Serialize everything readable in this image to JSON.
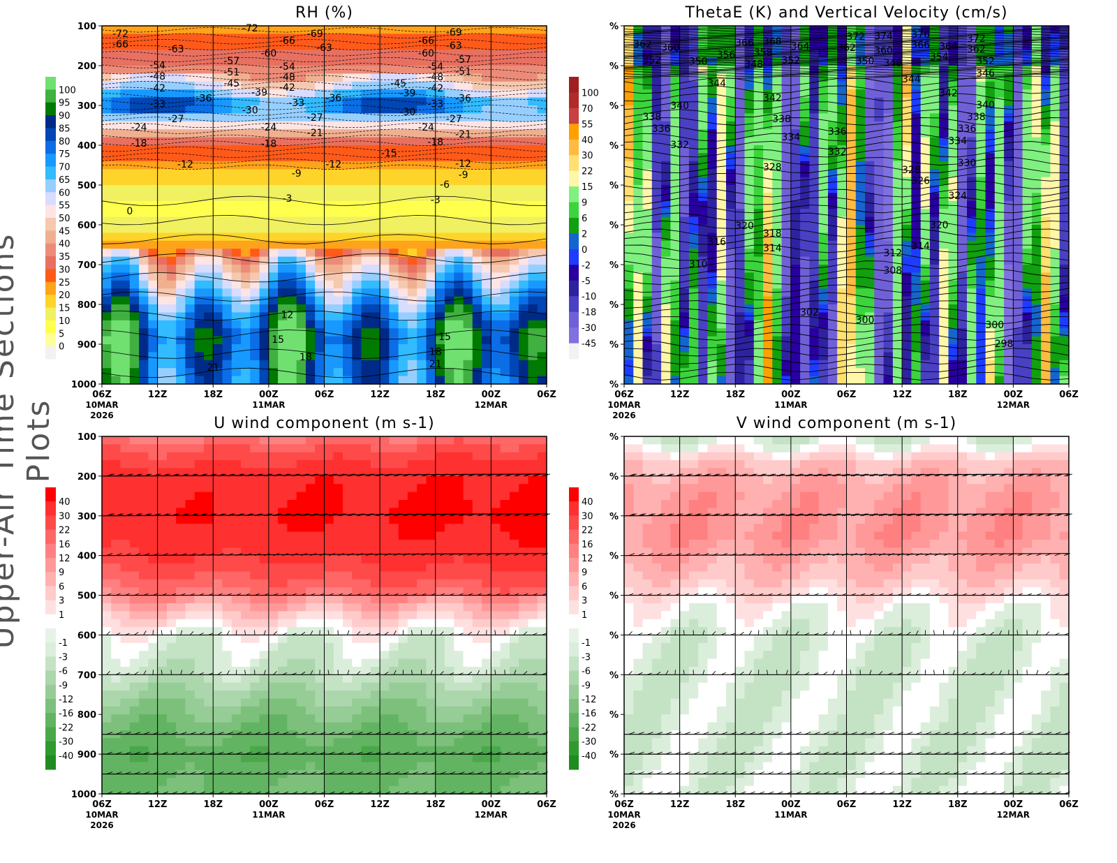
{
  "figure_title": "Upper-Air Time Sections Plots",
  "chart_data": [
    {
      "id": "rh",
      "type": "heatmap",
      "title": "RH (%)",
      "x_ticks": [
        {
          "label": "06Z",
          "sub": "10MAR",
          "sub2": "2026"
        },
        {
          "label": "12Z"
        },
        {
          "label": "18Z"
        },
        {
          "label": "00Z",
          "sub": "11MAR"
        },
        {
          "label": "06Z"
        },
        {
          "label": "12Z"
        },
        {
          "label": "18Z"
        },
        {
          "label": "00Z",
          "sub": "12MAR"
        },
        {
          "label": "06Z"
        }
      ],
      "x_range": [
        "2026-03-10T06",
        "2026-03-12T06"
      ],
      "y_ticks": [
        "100",
        "200",
        "300",
        "400",
        "500",
        "600",
        "700",
        "800",
        "900",
        "1000"
      ],
      "y_range": [
        100,
        1000
      ],
      "y_inverted": true,
      "colorbar_levels": [
        "0",
        "5",
        "10",
        "15",
        "20",
        "25",
        "30",
        "35",
        "40",
        "45",
        "50",
        "55",
        "60",
        "65",
        "70",
        "75",
        "80",
        "85",
        "90",
        "95",
        "100"
      ],
      "colorbar_colors": [
        "#f2f2f2",
        "#ffff99",
        "#ffff4d",
        "#f0f060",
        "#ffd42a",
        "#ffa31a",
        "#ff5a1a",
        "#e87060",
        "#ec8c78",
        "#f0b090",
        "#f5c8b0",
        "#ffe4e4",
        "#d8dcff",
        "#96cfff",
        "#33bbff",
        "#1799ff",
        "#0c6ee6",
        "#0046b4",
        "#002a88",
        "#007a00",
        "#40b040",
        "#70e070"
      ],
      "contour_labels": [
        [
          "2026-03-10T08",
          119,
          "-72"
        ],
        [
          "2026-03-10T08",
          146,
          "-66"
        ],
        [
          "2026-03-10T22",
          105,
          "-72"
        ],
        [
          "2026-03-11T02",
          137,
          "-66"
        ],
        [
          "2026-03-11T05",
          119,
          "-69"
        ],
        [
          "2026-03-10T14",
          158,
          "-63"
        ],
        [
          "2026-03-11T06",
          154,
          "-63"
        ],
        [
          "2026-03-11T00",
          168,
          "-60"
        ],
        [
          "2026-03-11T17",
          137,
          "-66"
        ],
        [
          "2026-03-11T20",
          116,
          "-69"
        ],
        [
          "2026-03-11T20",
          149,
          "-63"
        ],
        [
          "2026-03-11T17",
          168,
          "-60"
        ],
        [
          "2026-03-11T21",
          184,
          "-57"
        ],
        [
          "2026-03-10T12",
          198,
          "-54"
        ],
        [
          "2026-03-10T20",
          188,
          "-57"
        ],
        [
          "2026-03-11T02",
          202,
          "-54"
        ],
        [
          "2026-03-10T20",
          216,
          "-51"
        ],
        [
          "2026-03-10T12",
          226,
          "-48"
        ],
        [
          "2026-03-10T20",
          244,
          "-45"
        ],
        [
          "2026-03-11T02",
          228,
          "-48"
        ],
        [
          "2026-03-10T12",
          256,
          "-42"
        ],
        [
          "2026-03-11T02",
          254,
          "-42"
        ],
        [
          "2026-03-11T21",
          214,
          "-51"
        ],
        [
          "2026-03-11T18",
          202,
          "-54"
        ],
        [
          "2026-03-11T18",
          228,
          "-48"
        ],
        [
          "2026-03-11T14",
          244,
          "-45"
        ],
        [
          "2026-03-11T18",
          256,
          "-42"
        ],
        [
          "2026-03-10T23",
          267,
          "-39"
        ],
        [
          "2026-03-11T15",
          268,
          "-39"
        ],
        [
          "2026-03-10T17",
          282,
          "-36"
        ],
        [
          "2026-03-11T07",
          281,
          "-36"
        ],
        [
          "2026-03-11T21",
          282,
          "-36"
        ],
        [
          "2026-03-10T12",
          296,
          "-33"
        ],
        [
          "2026-03-11T03",
          293,
          "-33"
        ],
        [
          "2026-03-11T18",
          296,
          "-33"
        ],
        [
          "2026-03-10T22",
          311,
          "-30"
        ],
        [
          "2026-03-11T15",
          316,
          "-30"
        ],
        [
          "2026-03-10T14",
          333,
          "-27"
        ],
        [
          "2026-03-11T05",
          330,
          "-27"
        ],
        [
          "2026-03-11T20",
          333,
          "-27"
        ],
        [
          "2026-03-10T10",
          354,
          "-24"
        ],
        [
          "2026-03-11T00",
          354,
          "-24"
        ],
        [
          "2026-03-11T17",
          354,
          "-24"
        ],
        [
          "2026-03-11T05",
          368,
          "-21"
        ],
        [
          "2026-03-11T21",
          372,
          "-21"
        ],
        [
          "2026-03-10T10",
          395,
          "-18"
        ],
        [
          "2026-03-11T00",
          396,
          "-18"
        ],
        [
          "2026-03-11T18",
          391,
          "-18"
        ],
        [
          "2026-03-11T13",
          419,
          "-15"
        ],
        [
          "2026-03-10T15",
          447,
          "-12"
        ],
        [
          "2026-03-11T07",
          447,
          "-12"
        ],
        [
          "2026-03-11T21",
          446,
          "-12"
        ],
        [
          "2026-03-11T03",
          470,
          "-9"
        ],
        [
          "2026-03-11T21",
          474,
          "-9"
        ],
        [
          "2026-03-11T19",
          498,
          "-6"
        ],
        [
          "2026-03-11T02",
          533,
          "-3"
        ],
        [
          "2026-03-11T18",
          537,
          "-3"
        ],
        [
          "2026-03-10T09",
          565,
          "0"
        ],
        [
          "2026-03-11T02",
          825,
          "12"
        ],
        [
          "2026-03-11T01",
          888,
          "15"
        ],
        [
          "2026-03-11T04",
          932,
          "18"
        ],
        [
          "2026-03-10T18",
          958,
          "21"
        ],
        [
          "2026-03-11T19",
          881,
          "15"
        ],
        [
          "2026-03-11T18",
          918,
          "18"
        ],
        [
          "2026-03-11T18",
          949,
          "21"
        ]
      ]
    },
    {
      "id": "thetae",
      "type": "heatmap",
      "title": "ThetaE (K) and Vertical Velocity (cm/s)",
      "x_ticks": [
        {
          "label": "06Z",
          "sub": "10MAR",
          "sub2": "2026"
        },
        {
          "label": "12Z"
        },
        {
          "label": "18Z"
        },
        {
          "label": "00Z",
          "sub": "11MAR"
        },
        {
          "label": "06Z"
        },
        {
          "label": "12Z"
        },
        {
          "label": "18Z"
        },
        {
          "label": "00Z",
          "sub": "12MAR"
        },
        {
          "label": "06Z"
        }
      ],
      "x_range": [
        "2026-03-10T06",
        "2026-03-12T06"
      ],
      "y_ticks": [
        "%",
        "%",
        "%",
        "%",
        "%",
        "%",
        "%",
        "%",
        "%",
        "%"
      ],
      "y_range": [
        100,
        1000
      ],
      "y_inverted": true,
      "colorbar_levels": [
        "-45",
        "-30",
        "-18",
        "-10",
        "-5",
        "-2",
        "0",
        "2",
        "6",
        "9",
        "15",
        "22",
        "30",
        "40",
        "55",
        "70",
        "100"
      ],
      "colorbar_colors": [
        "#f2f2f2",
        "#8070e0",
        "#7060d8",
        "#4a40c4",
        "#2e22a0",
        "#2800a0",
        "#1e3cff",
        "#1565d0",
        "#10a010",
        "#3cd43c",
        "#80f080",
        "#fff6a8",
        "#ffe070",
        "#ffbb40",
        "#ffa000",
        "#c84040",
        "#b22a2a",
        "#a02020"
      ],
      "contour_labels": [
        [
          "2026-03-10T08",
          146,
          "362"
        ],
        [
          "2026-03-10T11",
          154,
          "360"
        ],
        [
          "2026-03-10T09",
          186,
          "352"
        ],
        [
          "2026-03-10T14",
          189,
          "350"
        ],
        [
          "2026-03-10T17",
          172,
          "356"
        ],
        [
          "2026-03-10T19",
          142,
          "366"
        ],
        [
          "2026-03-10T22",
          139,
          "368"
        ],
        [
          "2026-03-10T21",
          167,
          "358"
        ],
        [
          "2026-03-10T20",
          196,
          "348"
        ],
        [
          "2026-03-11T00",
          186,
          "352"
        ],
        [
          "2026-03-11T01",
          151,
          "364"
        ],
        [
          "2026-03-11T07",
          126,
          "372"
        ],
        [
          "2026-03-11T06",
          154,
          "362"
        ],
        [
          "2026-03-11T10",
          125,
          "374"
        ],
        [
          "2026-03-11T10",
          161,
          "360"
        ],
        [
          "2026-03-11T08",
          188,
          "350"
        ],
        [
          "2026-03-11T11",
          193,
          "348"
        ],
        [
          "2026-03-11T14",
          121,
          "376"
        ],
        [
          "2026-03-11T14",
          147,
          "366"
        ],
        [
          "2026-03-11T17",
          151,
          "364"
        ],
        [
          "2026-03-11T16",
          177,
          "354"
        ],
        [
          "2026-03-11T20",
          132,
          "372"
        ],
        [
          "2026-03-11T20",
          158,
          "362"
        ],
        [
          "2026-03-11T21",
          188,
          "352"
        ],
        [
          "2026-03-11T21",
          218,
          "346"
        ],
        [
          "2026-03-10T16",
          244,
          "344"
        ],
        [
          "2026-03-11T13",
          233,
          "344"
        ],
        [
          "2026-03-10T22",
          281,
          "342"
        ],
        [
          "2026-03-11T17",
          268,
          "342"
        ],
        [
          "2026-03-10T12",
          300,
          "340"
        ],
        [
          "2026-03-11T21",
          298,
          "340"
        ],
        [
          "2026-03-10T09",
          328,
          "338"
        ],
        [
          "2026-03-10T10",
          358,
          "336"
        ],
        [
          "2026-03-10T23",
          333,
          "338"
        ],
        [
          "2026-03-11T20",
          328,
          "338"
        ],
        [
          "2026-03-11T05",
          365,
          "336"
        ],
        [
          "2026-03-11T19",
          358,
          "336"
        ],
        [
          "2026-03-11T00",
          379,
          "334"
        ],
        [
          "2026-03-11T18",
          389,
          "334"
        ],
        [
          "2026-03-10T12",
          398,
          "332"
        ],
        [
          "2026-03-11T05",
          416,
          "332"
        ],
        [
          "2026-03-11T19",
          444,
          "330"
        ],
        [
          "2026-03-10T22",
          454,
          "328"
        ],
        [
          "2026-03-11T13",
          461,
          "328"
        ],
        [
          "2026-03-11T14",
          489,
          "326"
        ],
        [
          "2026-03-11T18",
          526,
          "324"
        ],
        [
          "2026-03-10T19",
          602,
          "320"
        ],
        [
          "2026-03-11T16",
          600,
          "320"
        ],
        [
          "2026-03-10T22",
          621,
          "318"
        ],
        [
          "2026-03-10T16",
          642,
          "316"
        ],
        [
          "2026-03-10T22",
          658,
          "314"
        ],
        [
          "2026-03-11T14",
          653,
          "314"
        ],
        [
          "2026-03-11T11",
          670,
          "312"
        ],
        [
          "2026-03-10T14",
          698,
          "310"
        ],
        [
          "2026-03-11T11",
          714,
          "308"
        ],
        [
          "2026-03-11T02",
          819,
          "302"
        ],
        [
          "2026-03-11T08",
          839,
          "300"
        ],
        [
          "2026-03-11T22",
          851,
          "300"
        ],
        [
          "2026-03-11T23",
          898,
          "298"
        ]
      ]
    },
    {
      "id": "uwind",
      "type": "heatmap",
      "title": "U wind component (m s-1)",
      "x_ticks": [
        {
          "label": "06Z",
          "sub": "10MAR",
          "sub2": "2026"
        },
        {
          "label": "12Z"
        },
        {
          "label": "18Z"
        },
        {
          "label": "00Z",
          "sub": "11MAR"
        },
        {
          "label": "06Z"
        },
        {
          "label": "12Z"
        },
        {
          "label": "18Z"
        },
        {
          "label": "00Z",
          "sub": "12MAR"
        },
        {
          "label": "06Z"
        }
      ],
      "x_range": [
        "2026-03-10T06",
        "2026-03-12T06"
      ],
      "y_ticks": [
        "100",
        "200",
        "300",
        "400",
        "500",
        "600",
        "700",
        "800",
        "900",
        "1000"
      ],
      "y_range": [
        100,
        1000
      ],
      "y_inverted": true,
      "barb_levels": [
        200,
        300,
        400,
        500,
        600,
        700,
        850,
        900,
        950,
        1000
      ],
      "colorbar_levels": [
        "-40",
        "-30",
        "-22",
        "-16",
        "-12",
        "-9",
        "-6",
        "-3",
        "-1",
        "1",
        "3",
        "6",
        "9",
        "12",
        "16",
        "22",
        "30",
        "40"
      ],
      "colorbar_colors": [
        "#1e8c1e",
        "#2f9a2f",
        "#4aa84a",
        "#62b462",
        "#7cc07c",
        "#96cc96",
        "#acd6ac",
        "#c4e2c4",
        "#dbeedb",
        "#e8f3e8",
        "#ffffff",
        "#ffe0e0",
        "#ffcaca",
        "#ffb0b0",
        "#ff9898",
        "#ff8080",
        "#ff6666",
        "#ff4a4a",
        "#ff3030",
        "#ff0000"
      ]
    },
    {
      "id": "vwind",
      "type": "heatmap",
      "title": "V wind component (m s-1)",
      "x_ticks": [
        {
          "label": "06Z",
          "sub": "10MAR",
          "sub2": "2026"
        },
        {
          "label": "12Z"
        },
        {
          "label": "18Z"
        },
        {
          "label": "00Z",
          "sub": "11MAR"
        },
        {
          "label": "06Z"
        },
        {
          "label": "12Z"
        },
        {
          "label": "18Z"
        },
        {
          "label": "00Z",
          "sub": "12MAR"
        },
        {
          "label": "06Z"
        }
      ],
      "x_range": [
        "2026-03-10T06",
        "2026-03-12T06"
      ],
      "y_ticks": [
        "%",
        "%",
        "%",
        "%",
        "%",
        "%",
        "%",
        "%",
        "%",
        "%"
      ],
      "y_range": [
        100,
        1000
      ],
      "y_inverted": true,
      "barb_levels": [
        200,
        300,
        400,
        500,
        600,
        700,
        850,
        900,
        950,
        1000
      ],
      "colorbar_levels": [
        "-40",
        "-30",
        "-22",
        "-16",
        "-12",
        "-9",
        "-6",
        "-3",
        "-1",
        "1",
        "3",
        "6",
        "9",
        "12",
        "16",
        "22",
        "30",
        "40"
      ],
      "colorbar_colors": [
        "#1e8c1e",
        "#2f9a2f",
        "#4aa84a",
        "#62b462",
        "#7cc07c",
        "#96cc96",
        "#acd6ac",
        "#c4e2c4",
        "#dbeedb",
        "#e8f3e8",
        "#ffffff",
        "#ffe0e0",
        "#ffcaca",
        "#ffb0b0",
        "#ff9898",
        "#ff8080",
        "#ff6666",
        "#ff4a4a",
        "#ff3030",
        "#ff0000"
      ]
    }
  ]
}
